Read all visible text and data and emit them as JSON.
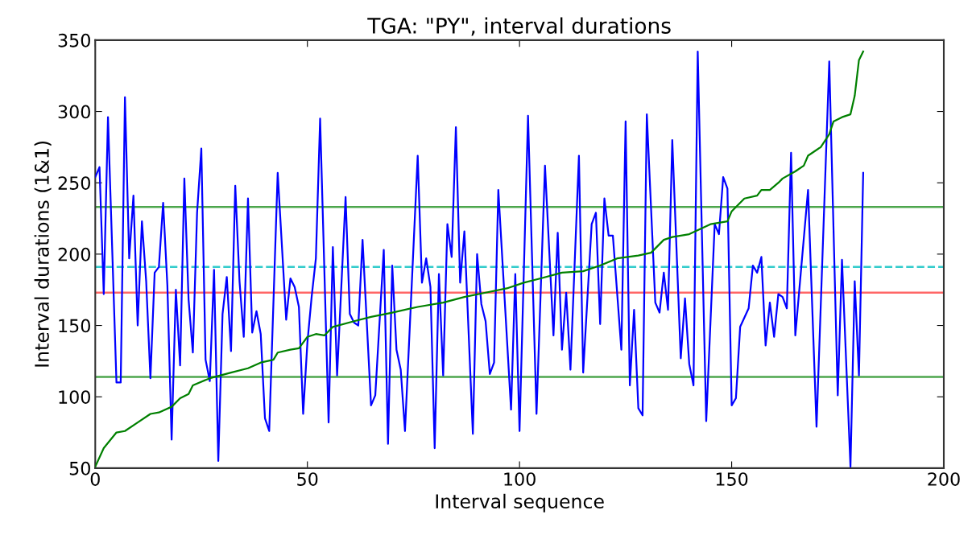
{
  "chart_data": {
    "type": "line",
    "title": "TGA: \"PY\", interval durations",
    "xlabel": "Interval sequence",
    "ylabel": "Interval durations (1&1)",
    "xlim": [
      0,
      200
    ],
    "xticks": [
      0,
      50,
      100,
      150,
      200
    ],
    "ylim": [
      50,
      350
    ],
    "yticks": [
      50,
      100,
      150,
      200,
      250,
      300,
      350
    ],
    "grid": false,
    "legend": false,
    "marker": "none",
    "line_style": "solid",
    "series": [
      {
        "color": "#0000ff",
        "x": [
          0,
          1,
          2,
          3,
          5,
          6,
          7,
          8,
          9,
          10,
          11,
          12,
          13,
          14,
          15,
          16,
          17,
          18,
          19,
          20,
          21,
          22,
          23,
          24,
          25,
          26,
          27,
          28,
          29,
          30,
          31,
          32,
          33,
          34,
          35,
          36,
          37,
          38,
          39,
          40,
          41,
          43,
          45,
          46,
          47,
          48,
          49,
          50,
          51,
          52,
          53,
          55,
          56,
          57,
          59,
          60,
          61,
          62,
          63,
          65,
          66,
          68,
          69,
          70,
          71,
          72,
          73,
          76,
          77,
          78,
          79,
          80,
          81,
          82,
          83,
          84,
          85,
          86,
          87,
          89,
          90,
          91,
          92,
          93,
          94,
          95,
          98,
          99,
          100,
          102,
          104,
          106,
          108,
          109,
          110,
          111,
          112,
          114,
          115,
          117,
          118,
          119,
          120,
          121,
          122,
          124,
          125,
          126,
          127,
          128,
          129,
          130,
          132,
          133,
          134,
          135,
          136,
          138,
          139,
          140,
          141,
          142,
          144,
          146,
          147,
          148,
          149,
          150,
          151,
          152,
          154,
          155,
          156,
          157,
          158,
          159,
          160,
          161,
          162,
          163,
          164,
          165,
          168,
          170,
          173,
          175,
          176,
          178,
          179,
          180,
          181
        ],
        "values": [
          254,
          261,
          172,
          296,
          110,
          110,
          310,
          197,
          241,
          150,
          223,
          181,
          113,
          187,
          191,
          236,
          178,
          70,
          175,
          122,
          253,
          168,
          131,
          229,
          274,
          126,
          111,
          189,
          55,
          158,
          184,
          132,
          248,
          181,
          142,
          239,
          145,
          160,
          144,
          85,
          76,
          257,
          154,
          183,
          177,
          163,
          88,
          138,
          170,
          197,
          295,
          82,
          205,
          115,
          240,
          158,
          152,
          150,
          210,
          94,
          101,
          203,
          67,
          192,
          133,
          119,
          76,
          269,
          180,
          197,
          177,
          64,
          186,
          115,
          221,
          198,
          289,
          180,
          216,
          74,
          200,
          165,
          153,
          116,
          124,
          245,
          91,
          186,
          76,
          297,
          88,
          262,
          143,
          215,
          133,
          173,
          119,
          269,
          117,
          221,
          229,
          151,
          239,
          213,
          213,
          133,
          293,
          108,
          161,
          92,
          87,
          298,
          166,
          159,
          187,
          161,
          280,
          127,
          169,
          123,
          108,
          342,
          83,
          221,
          214,
          254,
          246,
          94,
          99,
          149,
          162,
          192,
          187,
          198,
          136,
          166,
          142,
          172,
          170,
          162,
          271,
          143,
          245,
          79,
          335,
          101,
          196,
          51,
          181,
          115,
          257
        ]
      },
      {
        "color": "#008000",
        "x": [
          0,
          2,
          5,
          7,
          10,
          13,
          15,
          18,
          20,
          22,
          23,
          27,
          32,
          36,
          39,
          42,
          43,
          46,
          48,
          50,
          52,
          54,
          56,
          61,
          65,
          70,
          76,
          82,
          87,
          92,
          97,
          101,
          105,
          110,
          115,
          119,
          123,
          128,
          131,
          134,
          136,
          140,
          145,
          149,
          150,
          153,
          156,
          157,
          159,
          161,
          162,
          165,
          167,
          168,
          171,
          173,
          174,
          176,
          178,
          179,
          180,
          181
        ],
        "values": [
          51,
          64,
          75,
          76,
          82,
          88,
          89,
          93,
          99,
          102,
          108,
          113,
          117,
          120,
          124,
          126,
          131,
          133,
          134,
          142,
          144,
          143,
          149,
          153,
          156,
          159,
          163,
          166,
          170,
          173,
          176,
          180,
          183,
          187,
          188,
          192,
          197,
          199,
          201,
          210,
          212,
          214,
          221,
          223,
          230,
          239,
          241,
          245,
          245,
          250,
          253,
          258,
          262,
          269,
          275,
          284,
          293,
          296,
          298,
          311,
          336,
          342
        ]
      }
    ],
    "ref_lines": [
      {
        "axis": "y",
        "value": 233,
        "color": "#4da64d",
        "line_style": "solid"
      },
      {
        "axis": "y",
        "value": 191,
        "color": "#33cccc",
        "line_style": "dashed"
      },
      {
        "axis": "y",
        "value": 173,
        "color": "#ff6666",
        "line_style": "solid"
      },
      {
        "axis": "y",
        "value": 114,
        "color": "#4da64d",
        "line_style": "solid"
      }
    ]
  }
}
